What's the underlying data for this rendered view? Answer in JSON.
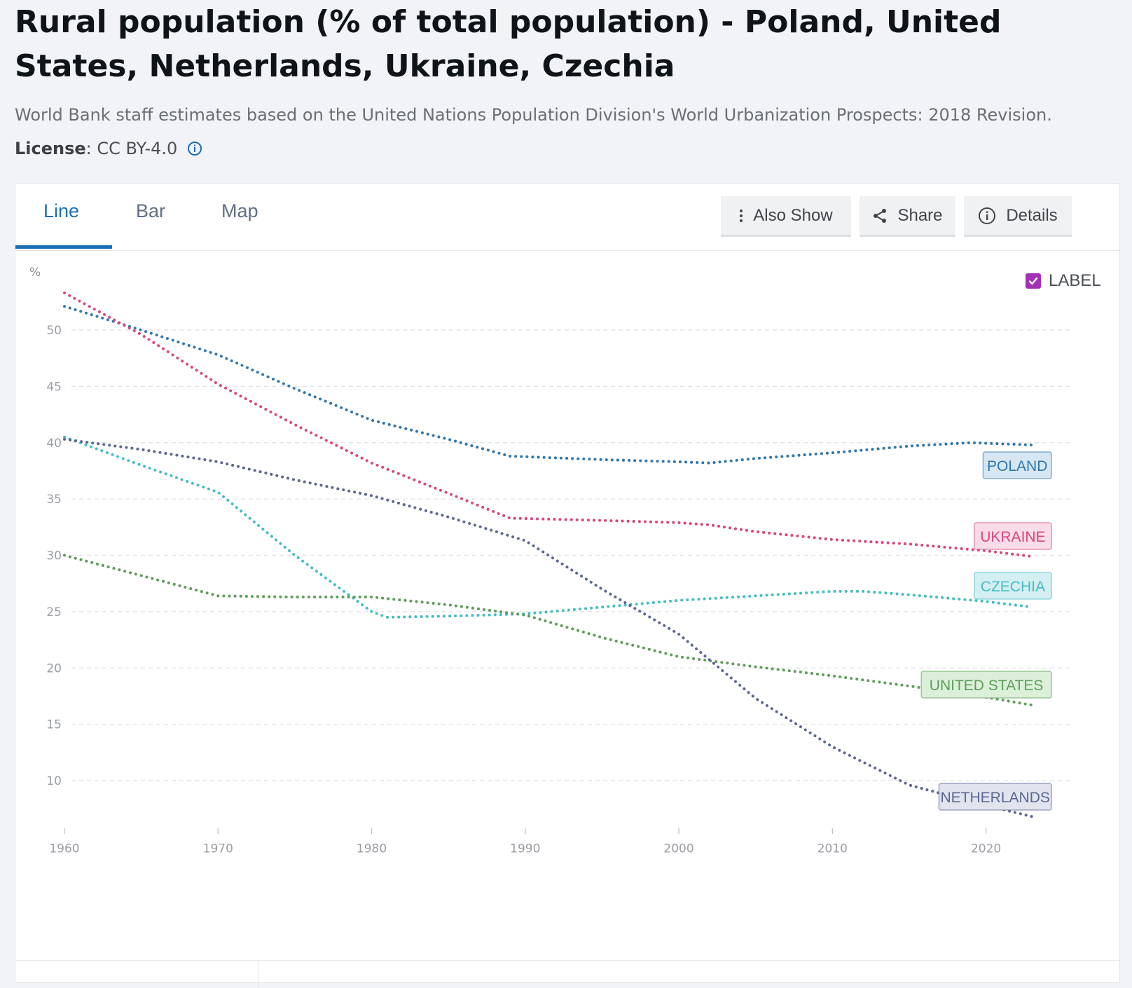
{
  "page": {
    "title": "Rural population (% of total population) - Poland, United States, Netherlands, Ukraine, Czechia",
    "source": "World Bank staff estimates based on the United Nations Population Division's World Urbanization Prospects: 2018 Revision.",
    "license_label": "License",
    "license_value": " : CC BY-4.0"
  },
  "tabs": [
    {
      "label": "Line",
      "active": true
    },
    {
      "label": "Bar",
      "active": false
    },
    {
      "label": "Map",
      "active": false
    }
  ],
  "toolbar": {
    "also_show": "Also Show",
    "share": "Share",
    "details": "Details"
  },
  "label_toggle": {
    "text": "LABEL",
    "checked": true
  },
  "colors": {
    "poland": "#2f77ad",
    "ukraine": "#d9457f",
    "czechia": "#44bcc4",
    "united_states": "#5c9e58",
    "netherlands": "#5b6791",
    "accent": "#1a6fb5",
    "checkbox": "#a52fb7"
  },
  "chart_data": {
    "type": "line",
    "ylabel": "%",
    "xlim": [
      1960,
      2023
    ],
    "ylim": [
      6.5,
      54
    ],
    "x_ticks": [
      1960,
      1970,
      1980,
      1990,
      2000,
      2010,
      2020
    ],
    "y_ticks": [
      10,
      15,
      20,
      25,
      30,
      35,
      40,
      45,
      50
    ],
    "grid": true,
    "line_style": "dotted",
    "series": [
      {
        "name": "POLAND",
        "key": "poland",
        "x": [
          1960,
          1965,
          1970,
          1975,
          1980,
          1985,
          1989,
          1995,
          2000,
          2002,
          2005,
          2010,
          2015,
          2019,
          2023
        ],
        "y": [
          52.1,
          50.0,
          47.8,
          44.8,
          42.0,
          40.3,
          38.8,
          38.5,
          38.3,
          38.2,
          38.6,
          39.1,
          39.7,
          40.0,
          39.8
        ]
      },
      {
        "name": "UKRAINE",
        "key": "ukraine",
        "x": [
          1960,
          1965,
          1970,
          1975,
          1980,
          1985,
          1989,
          1995,
          2000,
          2002,
          2005,
          2010,
          2015,
          2020,
          2023
        ],
        "y": [
          53.3,
          49.6,
          45.2,
          41.6,
          38.2,
          35.5,
          33.3,
          33.1,
          32.9,
          32.7,
          32.1,
          31.4,
          31.0,
          30.4,
          29.9
        ]
      },
      {
        "name": "CZECHIA",
        "key": "czechia",
        "x": [
          1960,
          1965,
          1970,
          1975,
          1980,
          1981,
          1985,
          1990,
          1995,
          2000,
          2005,
          2010,
          2012,
          2015,
          2020,
          2023
        ],
        "y": [
          40.5,
          38.0,
          35.6,
          30.0,
          25.0,
          24.5,
          24.6,
          24.8,
          25.4,
          26.0,
          26.4,
          26.8,
          26.8,
          26.5,
          25.9,
          25.4
        ]
      },
      {
        "name": "UNITED STATES",
        "key": "united_states",
        "x": [
          1960,
          1965,
          1970,
          1975,
          1980,
          1985,
          1990,
          1995,
          2000,
          2005,
          2010,
          2015,
          2020,
          2023
        ],
        "y": [
          30.0,
          28.2,
          26.4,
          26.3,
          26.3,
          25.6,
          24.7,
          22.7,
          21.0,
          20.1,
          19.3,
          18.4,
          17.4,
          16.7
        ]
      },
      {
        "name": "NETHERLANDS",
        "key": "netherlands",
        "x": [
          1960,
          1965,
          1970,
          1975,
          1980,
          1985,
          1990,
          1995,
          2000,
          2005,
          2010,
          2015,
          2020,
          2023
        ],
        "y": [
          40.3,
          39.4,
          38.3,
          36.7,
          35.3,
          33.4,
          31.3,
          27.0,
          23.0,
          17.3,
          13.0,
          9.6,
          7.8,
          6.8
        ]
      }
    ]
  }
}
